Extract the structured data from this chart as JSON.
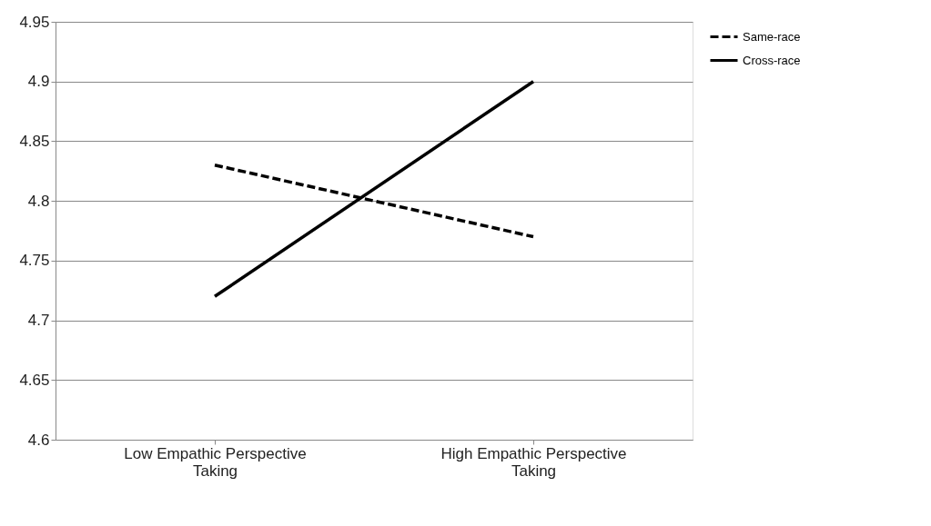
{
  "chart_data": {
    "type": "line",
    "categories": [
      "Low Empathic Perspective Taking",
      "High Empathic Perspective Taking"
    ],
    "series": [
      {
        "name": "Same-race",
        "color": "#000000",
        "line_style": "dashed",
        "values": [
          4.83,
          4.77
        ]
      },
      {
        "name": "Cross-race",
        "color": "#000000",
        "line_style": "solid",
        "values": [
          4.72,
          4.9
        ]
      }
    ],
    "ylim": [
      4.6,
      4.95
    ],
    "yticks": [
      4.6,
      4.65,
      4.7,
      4.75,
      4.8,
      4.85,
      4.9,
      4.95
    ],
    "grid": "y",
    "legend": "right",
    "marker": "none"
  }
}
